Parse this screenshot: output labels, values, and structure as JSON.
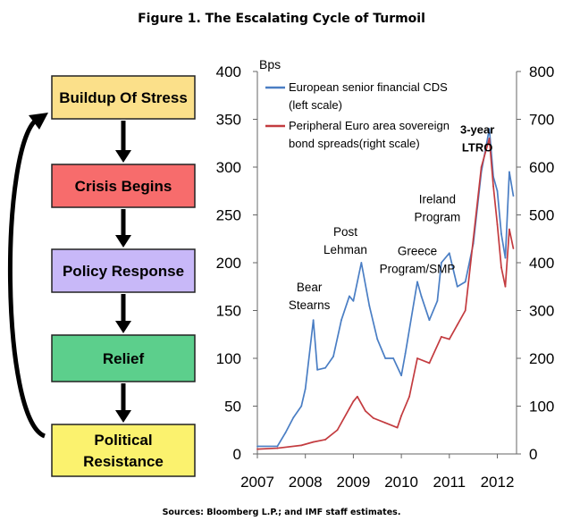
{
  "figure_title": "Figure 1. The Escalating Cycle of Turmoil",
  "source": "Sources: Bloomberg L.P.; and IMF staff estimates.",
  "cycle": {
    "stages": [
      {
        "label": "Buildup Of Stress",
        "color": "#fbe08a"
      },
      {
        "label": "Crisis Begins",
        "color": "#f76c6c"
      },
      {
        "label": "Policy Response",
        "color": "#c8b8f8"
      },
      {
        "label": "Relief",
        "color": "#5ccf8c"
      },
      {
        "label": "Political\nResistance",
        "color": "#fbf26e"
      }
    ]
  },
  "chart_data": {
    "type": "line",
    "x_ticks": [
      "2007",
      "2008",
      "2009",
      "2010",
      "2011",
      "2012"
    ],
    "left_axis": {
      "unit": "Bps",
      "min": 0,
      "max": 400,
      "ticks": [
        0,
        50,
        100,
        150,
        200,
        250,
        300,
        350,
        400
      ]
    },
    "right_axis": {
      "min": 0,
      "max": 800,
      "ticks": [
        0,
        100,
        200,
        300,
        400,
        500,
        600,
        700,
        800
      ]
    },
    "legend_position": "top-left",
    "series": [
      {
        "name": "European senior financial CDS (left scale)",
        "axis": "left",
        "color": "#4a7ec4",
        "points": [
          [
            "2007-01",
            8
          ],
          [
            "2007-06",
            8
          ],
          [
            "2007-08",
            22
          ],
          [
            "2007-10",
            38
          ],
          [
            "2007-12",
            50
          ],
          [
            "2008-01",
            68
          ],
          [
            "2008-03",
            140
          ],
          [
            "2008-04",
            88
          ],
          [
            "2008-06",
            90
          ],
          [
            "2008-08",
            102
          ],
          [
            "2008-10",
            140
          ],
          [
            "2008-12",
            165
          ],
          [
            "2009-01",
            160
          ],
          [
            "2009-03",
            200
          ],
          [
            "2009-05",
            155
          ],
          [
            "2009-07",
            120
          ],
          [
            "2009-09",
            100
          ],
          [
            "2009-11",
            100
          ],
          [
            "2010-01",
            82
          ],
          [
            "2010-02",
            105
          ],
          [
            "2010-05",
            180
          ],
          [
            "2010-06",
            165
          ],
          [
            "2010-08",
            140
          ],
          [
            "2010-10",
            160
          ],
          [
            "2010-11",
            200
          ],
          [
            "2011-01",
            210
          ],
          [
            "2011-03",
            175
          ],
          [
            "2011-05",
            180
          ],
          [
            "2011-07",
            220
          ],
          [
            "2011-09",
            295
          ],
          [
            "2011-11",
            340
          ],
          [
            "2011-12",
            290
          ],
          [
            "2012-01",
            275
          ],
          [
            "2012-02",
            230
          ],
          [
            "2012-03",
            205
          ],
          [
            "2012-04",
            295
          ],
          [
            "2012-05",
            270
          ]
        ]
      },
      {
        "name": "Peripheral Euro area sovereign bond spreads(right scale)",
        "axis": "right",
        "color": "#c33b3f",
        "points": [
          [
            "2007-01",
            10
          ],
          [
            "2007-06",
            12
          ],
          [
            "2007-12",
            18
          ],
          [
            "2008-03",
            25
          ],
          [
            "2008-06",
            30
          ],
          [
            "2008-09",
            50
          ],
          [
            "2008-12",
            95
          ],
          [
            "2009-01",
            110
          ],
          [
            "2009-02",
            120
          ],
          [
            "2009-04",
            90
          ],
          [
            "2009-06",
            75
          ],
          [
            "2009-09",
            65
          ],
          [
            "2009-12",
            55
          ],
          [
            "2010-01",
            80
          ],
          [
            "2010-03",
            120
          ],
          [
            "2010-05",
            200
          ],
          [
            "2010-08",
            190
          ],
          [
            "2010-11",
            245
          ],
          [
            "2011-01",
            240
          ],
          [
            "2011-03",
            270
          ],
          [
            "2011-05",
            300
          ],
          [
            "2011-07",
            450
          ],
          [
            "2011-09",
            600
          ],
          [
            "2011-11",
            660
          ],
          [
            "2011-12",
            560
          ],
          [
            "2012-01",
            480
          ],
          [
            "2012-02",
            390
          ],
          [
            "2012-03",
            350
          ],
          [
            "2012-04",
            470
          ],
          [
            "2012-05",
            430
          ]
        ]
      }
    ],
    "annotations": [
      {
        "text": "Bear\nStearns",
        "x": "2008-02",
        "y_left": 170
      },
      {
        "text": "Post\nLehman",
        "x": "2008-11",
        "y_left": 228
      },
      {
        "text": "Greece\nProgram/SMP",
        "x": "2010-05",
        "y_left": 208
      },
      {
        "text": "Ireland\nProgram",
        "x": "2010-10",
        "y_left": 262
      },
      {
        "text": "3-year\nLTRO",
        "x": "2011-08",
        "y_left": 335,
        "bold": true
      }
    ]
  }
}
